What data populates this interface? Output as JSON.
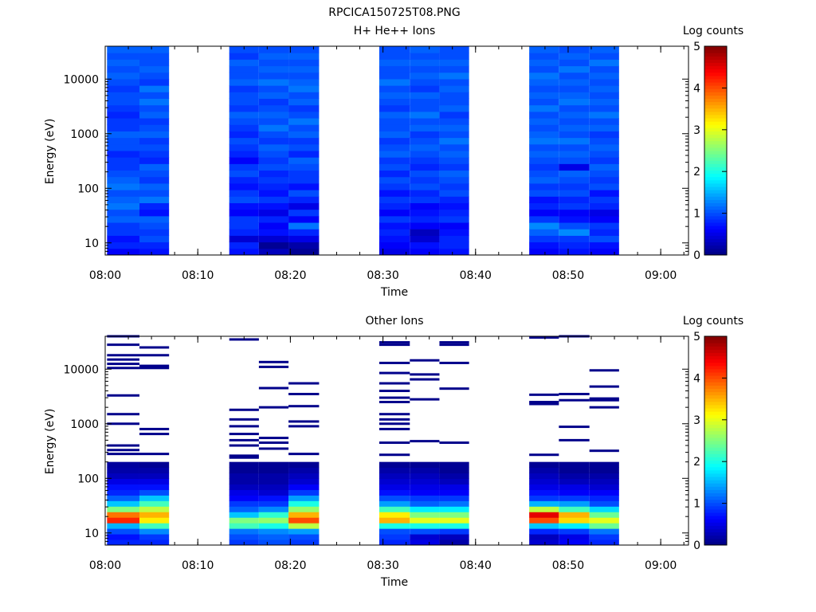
{
  "figure": {
    "title": "RPCICA150725T08.PNG"
  },
  "chart_data": [
    {
      "type": "heatmap",
      "title": "H+ He++ Ions",
      "xlabel": "Time",
      "ylabel": "Energy (eV)",
      "y_scale": "log",
      "ylim": [
        6,
        40000
      ],
      "xlim": [
        "08:00",
        "09:03"
      ],
      "x_ticks": [
        "08:00",
        "08:10",
        "08:20",
        "08:30",
        "08:40",
        "08:50",
        "09:00"
      ],
      "y_ticks": [
        "10",
        "100",
        "1000",
        "10000"
      ],
      "colorbar": {
        "label": "Log counts",
        "range": [
          0,
          5
        ],
        "ticks": [
          "0",
          "1",
          "2",
          "3",
          "4",
          "5"
        ]
      },
      "columns": [
        {
          "start": "08:00.2",
          "end": "08:03.7",
          "profile": [
            0.6,
            0.8,
            0.7,
            0.9,
            0.9,
            1.1,
            1.0,
            1.2,
            1.1,
            1.0,
            1.2,
            1.1,
            1.0,
            0.9,
            0.9,
            0.8,
            1.0,
            1.0,
            1.1,
            0.9,
            0.9,
            0.8,
            0.9,
            1.0,
            1.0,
            0.9,
            1.0,
            1.1,
            1.0,
            1.1,
            1.0,
            1.1
          ]
        },
        {
          "start": "08:03.7",
          "end": "08:06.9",
          "profile": [
            0.7,
            0.8,
            1.0,
            0.9,
            1.0,
            1.1,
            0.7,
            0.8,
            1.2,
            1.0,
            1.1,
            0.9,
            1.0,
            1.1,
            0.8,
            0.9,
            1.0,
            0.9,
            1.1,
            1.0,
            0.9,
            1.1,
            1.0,
            1.2,
            1.0,
            1.2,
            0.9,
            1.0,
            1.1,
            1.0,
            1.0,
            1.1
          ]
        },
        {
          "start": "08:13.4",
          "end": "08:16.6",
          "profile": [
            0.7,
            0.8,
            0.4,
            0.8,
            0.9,
            0.9,
            0.6,
            0.7,
            1.0,
            0.9,
            0.7,
            0.8,
            1.0,
            0.9,
            0.6,
            0.8,
            0.9,
            1.0,
            0.8,
            0.9,
            1.0,
            1.1,
            0.9,
            1.0,
            1.0,
            0.9,
            1.1,
            1.0,
            1.0,
            1.1,
            0.9,
            1.0
          ]
        },
        {
          "start": "08:16.6",
          "end": "08:19.8",
          "profile": [
            0.3,
            0.1,
            0.4,
            0.7,
            0.6,
            0.8,
            0.5,
            0.7,
            0.9,
            0.7,
            0.8,
            0.9,
            0.8,
            1.0,
            0.9,
            1.0,
            1.1,
            0.9,
            1.0,
            1.2,
            1.0,
            1.1,
            1.0,
            0.9,
            1.1,
            1.0,
            1.2,
            1.0,
            1.1,
            1.0,
            1.1,
            1.0
          ]
        },
        {
          "start": "08:19.8",
          "end": "08:23.1",
          "profile": [
            0.1,
            0.2,
            0.5,
            0.8,
            1.2,
            0.6,
            0.9,
            0.5,
            0.8,
            1.0,
            0.7,
            0.9,
            0.9,
            1.0,
            1.1,
            0.8,
            1.0,
            0.9,
            1.1,
            1.0,
            1.2,
            1.0,
            0.9,
            1.1,
            1.0,
            1.2,
            1.1,
            1.0,
            1.1,
            1.0,
            1.1,
            1.0
          ]
        },
        {
          "start": "08:29.6",
          "end": "08:32.9",
          "profile": [
            0.5,
            0.6,
            0.7,
            0.8,
            0.7,
            0.9,
            0.6,
            0.8,
            0.9,
            0.7,
            0.9,
            1.0,
            0.8,
            1.0,
            0.9,
            1.1,
            1.0,
            0.9,
            1.1,
            1.0,
            1.0,
            1.1,
            0.9,
            1.0,
            1.1,
            1.0,
            1.2,
            1.0,
            1.0,
            1.1,
            1.0,
            1.0
          ]
        },
        {
          "start": "08:32.9",
          "end": "08:36.1",
          "profile": [
            0.6,
            0.7,
            0.4,
            0.3,
            0.6,
            0.8,
            0.7,
            0.6,
            0.9,
            0.8,
            1.0,
            0.9,
            1.0,
            0.8,
            0.9,
            1.0,
            1.1,
            1.0,
            0.9,
            1.1,
            1.0,
            1.2,
            1.0,
            1.0,
            1.1,
            0.9,
            1.0,
            1.1,
            1.0,
            1.1,
            1.0,
            1.1
          ]
        },
        {
          "start": "08:36.1",
          "end": "08:39.3",
          "profile": [
            0.7,
            0.8,
            0.8,
            0.7,
            0.6,
            0.9,
            0.8,
            0.7,
            0.8,
            1.0,
            0.9,
            1.0,
            1.1,
            0.9,
            1.0,
            1.1,
            1.0,
            1.2,
            1.0,
            1.1,
            1.0,
            0.9,
            1.1,
            1.0,
            1.0,
            1.1,
            1.0,
            1.2,
            1.0,
            1.1,
            1.0,
            1.0
          ]
        },
        {
          "start": "08:45.8",
          "end": "08:49.0",
          "profile": [
            0.6,
            0.7,
            0.9,
            1.1,
            1.3,
            0.9,
            0.6,
            0.8,
            0.7,
            1.0,
            0.9,
            1.1,
            1.0,
            0.9,
            1.0,
            1.1,
            1.0,
            1.2,
            1.1,
            1.0,
            1.1,
            1.0,
            1.2,
            1.0,
            1.1,
            1.0,
            1.1,
            1.2,
            1.0,
            1.1,
            1.0,
            1.1
          ]
        },
        {
          "start": "08:49.0",
          "end": "08:52.3",
          "profile": [
            0.7,
            0.8,
            0.9,
            1.3,
            1.0,
            0.7,
            0.6,
            0.9,
            0.8,
            1.0,
            0.9,
            1.0,
            1.1,
            0.5,
            1.0,
            1.1,
            1.0,
            1.2,
            1.0,
            1.1,
            1.0,
            1.1,
            1.0,
            1.2,
            1.1,
            1.0,
            1.1,
            1.0,
            1.2,
            1.0,
            1.1,
            1.0
          ]
        },
        {
          "start": "08:52.3",
          "end": "08:55.5",
          "profile": [
            0.6,
            0.7,
            1.0,
            0.8,
            0.9,
            0.6,
            0.5,
            0.8,
            0.9,
            0.7,
            1.0,
            0.9,
            1.0,
            1.1,
            0.9,
            1.0,
            1.1,
            1.0,
            0.9,
            1.1,
            1.0,
            1.2,
            1.0,
            1.1,
            1.0,
            1.1,
            1.0,
            1.1,
            1.0,
            1.2,
            1.0,
            1.1
          ]
        }
      ]
    },
    {
      "type": "heatmap",
      "title": "Other Ions",
      "xlabel": "Time",
      "ylabel": "Energy (eV)",
      "y_scale": "log",
      "ylim": [
        6,
        40000
      ],
      "xlim": [
        "08:00",
        "09:03"
      ],
      "x_ticks": [
        "08:00",
        "08:10",
        "08:20",
        "08:30",
        "08:40",
        "08:50",
        "09:00"
      ],
      "y_ticks": [
        "10",
        "100",
        "1000",
        "10000"
      ],
      "colorbar": {
        "label": "Log counts",
        "range": [
          0,
          5
        ],
        "ticks": [
          "0",
          "1",
          "2",
          "3",
          "4",
          "5"
        ]
      },
      "columns": [
        {
          "start": "08:00.2",
          "end": "08:03.7",
          "dense_profile": [
            0.8,
            0.7,
            1.0,
            1.5,
            4.2,
            3.8,
            2.5,
            1.6,
            1.1,
            0.8,
            0.7,
            0.5,
            0.3,
            0.2,
            0.15
          ],
          "sparse_lines_eV": [
            280,
            330,
            400,
            1000,
            1500,
            3300,
            10500,
            12500,
            15000,
            18000,
            28000,
            40000
          ]
        },
        {
          "start": "08:03.7",
          "end": "08:06.9",
          "dense_profile": [
            0.8,
            0.9,
            1.3,
            2.2,
            3.2,
            3.5,
            2.8,
            2.2,
            1.6,
            1.0,
            0.7,
            0.5,
            0.3,
            0.2,
            0.1
          ],
          "sparse_lines_eV": [
            280,
            650,
            800,
            10500,
            11500,
            18000,
            25000
          ]
        },
        {
          "start": "08:13.4",
          "end": "08:16.6",
          "dense_profile": [
            0.9,
            1.0,
            1.2,
            2.2,
            2.5,
            1.6,
            1.1,
            0.9,
            0.6,
            0.5,
            0.3,
            0.2,
            0.2,
            0.1,
            0.1
          ],
          "sparse_lines_eV": [
            240,
            260,
            400,
            500,
            650,
            900,
            1200,
            1800,
            35000
          ]
        },
        {
          "start": "08:16.6",
          "end": "08:19.8",
          "dense_profile": [
            1.0,
            1.1,
            1.3,
            2.0,
            2.6,
            2.1,
            1.3,
            0.9,
            0.7,
            0.4,
            0.3,
            0.2,
            0.2,
            0.1,
            0.1
          ],
          "sparse_lines_eV": [
            350,
            450,
            550,
            2000,
            4500,
            11000,
            13500
          ]
        },
        {
          "start": "08:19.8",
          "end": "08:23.1",
          "dense_profile": [
            0.9,
            1.0,
            1.4,
            2.8,
            4.0,
            3.5,
            2.6,
            2.0,
            1.4,
            0.9,
            0.6,
            0.4,
            0.3,
            0.2,
            0.1
          ],
          "sparse_lines_eV": [
            280,
            900,
            1100,
            2100,
            3500,
            5500
          ]
        },
        {
          "start": "08:29.6",
          "end": "08:32.9",
          "dense_profile": [
            0.8,
            0.9,
            1.0,
            2.0,
            3.5,
            3.2,
            2.2,
            1.4,
            1.0,
            0.7,
            0.5,
            0.4,
            0.3,
            0.2,
            0.1
          ],
          "sparse_lines_eV": [
            270,
            450,
            800,
            1000,
            1200,
            1500,
            2500,
            3000,
            4000,
            5500,
            8500,
            13000,
            28000,
            31000
          ]
        },
        {
          "start": "08:32.9",
          "end": "08:36.1",
          "dense_profile": [
            0.5,
            0.4,
            1.0,
            2.0,
            3.0,
            2.5,
            1.8,
            1.1,
            0.9,
            0.6,
            0.5,
            0.4,
            0.3,
            0.2,
            0.1
          ],
          "sparse_lines_eV": [
            480,
            2800,
            6500,
            8000,
            14500
          ]
        },
        {
          "start": "08:36.1",
          "end": "08:39.3",
          "dense_profile": [
            0.2,
            0.3,
            0.9,
            2.0,
            3.0,
            2.5,
            1.8,
            1.2,
            0.9,
            0.6,
            0.5,
            0.3,
            0.2,
            0.1,
            0.1
          ],
          "sparse_lines_eV": [
            450,
            4400,
            13000,
            28000,
            31000
          ]
        },
        {
          "start": "08:45.8",
          "end": "08:49.0",
          "dense_profile": [
            0.4,
            0.3,
            0.8,
            1.6,
            4.0,
            4.5,
            2.8,
            1.5,
            0.9,
            0.7,
            0.5,
            0.4,
            0.3,
            0.2,
            0.1
          ],
          "sparse_lines_eV": [
            270,
            2300,
            2500,
            3400,
            38000
          ]
        },
        {
          "start": "08:49.0",
          "end": "08:52.3",
          "dense_profile": [
            0.6,
            0.5,
            0.9,
            1.8,
            3.3,
            3.5,
            2.2,
            1.4,
            0.9,
            0.6,
            0.5,
            0.3,
            0.2,
            0.1,
            0.1
          ],
          "sparse_lines_eV": [
            500,
            880,
            2700,
            3500,
            40000
          ]
        },
        {
          "start": "08:52.3",
          "end": "08:55.5",
          "dense_profile": [
            0.8,
            0.9,
            1.2,
            2.4,
            3.0,
            2.4,
            1.7,
            1.0,
            0.8,
            0.6,
            0.4,
            0.3,
            0.2,
            0.1,
            0.1
          ],
          "sparse_lines_eV": [
            320,
            2000,
            2700,
            2900,
            4800,
            9500
          ]
        }
      ]
    }
  ]
}
